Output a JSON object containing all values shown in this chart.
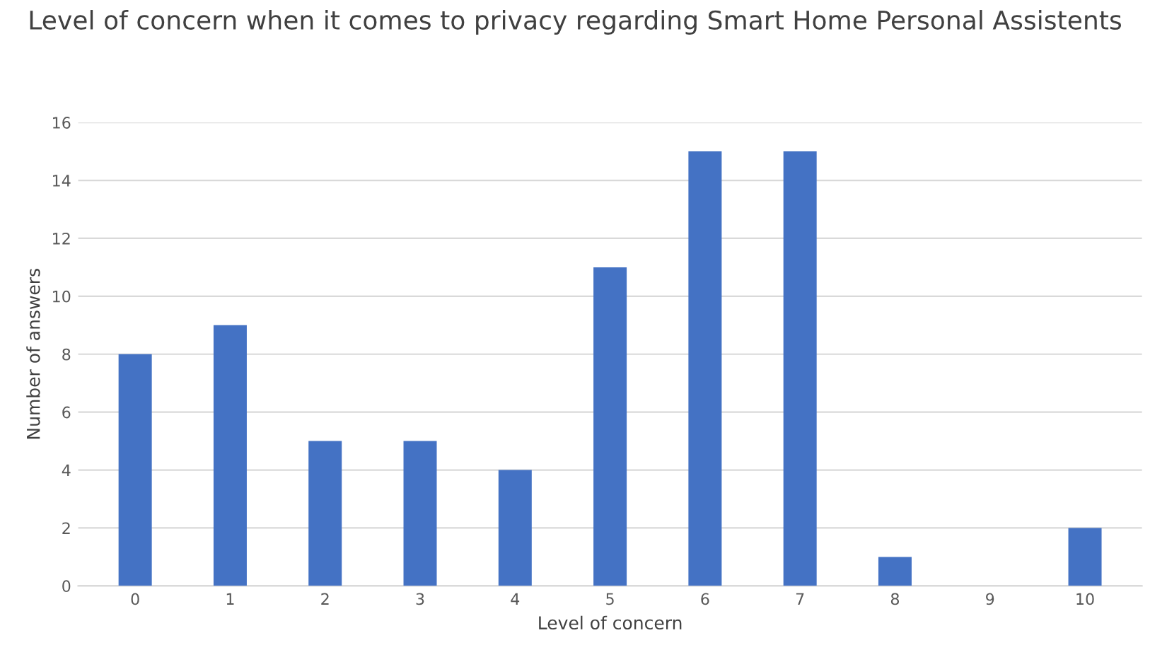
{
  "chart_data": {
    "type": "bar",
    "title": "Level of concern when it comes to privacy regarding Smart Home Personal Assistents",
    "xlabel": "Level of concern",
    "ylabel": "Number of answers",
    "categories": [
      "0",
      "1",
      "2",
      "3",
      "4",
      "5",
      "6",
      "7",
      "8",
      "9",
      "10"
    ],
    "values": [
      8,
      9,
      5,
      5,
      4,
      11,
      15,
      15,
      1,
      0,
      2
    ],
    "color": "#4472c4",
    "ylim": [
      0,
      16
    ],
    "yticks": [
      0,
      2,
      4,
      6,
      8,
      10,
      12,
      14,
      16
    ],
    "grid": "y"
  }
}
